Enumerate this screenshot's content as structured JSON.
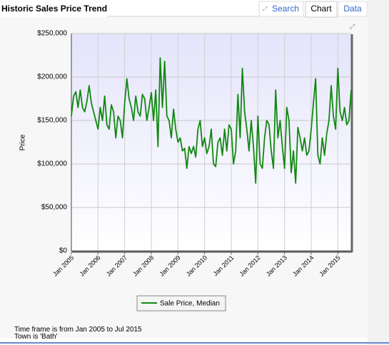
{
  "header": {
    "title": "Historic Sales Price Trend",
    "tabs": [
      "Search",
      "Chart",
      "Data"
    ]
  },
  "chart_data": {
    "type": "line",
    "ylabel": "Price",
    "categories": [
      "Jan 2005",
      null,
      null,
      null,
      null,
      null,
      null,
      null,
      null,
      null,
      null,
      null,
      "Jan 2006",
      null,
      null,
      null,
      null,
      null,
      null,
      null,
      null,
      null,
      null,
      null,
      "Jan 2007",
      null,
      null,
      null,
      null,
      null,
      null,
      null,
      null,
      null,
      null,
      null,
      "Jan 2008",
      null,
      null,
      null,
      null,
      null,
      null,
      null,
      null,
      null,
      null,
      null,
      "Jan 2009",
      null,
      null,
      null,
      null,
      null,
      null,
      null,
      null,
      null,
      null,
      null,
      "Jan 2010",
      null,
      null,
      null,
      null,
      null,
      null,
      null,
      null,
      null,
      null,
      null,
      "Jan 2011",
      null,
      null,
      null,
      null,
      null,
      null,
      null,
      null,
      null,
      null,
      null,
      "Jan 2012",
      null,
      null,
      null,
      null,
      null,
      null,
      null,
      null,
      null,
      null,
      null,
      "Jan 2013",
      null,
      null,
      null,
      null,
      null,
      null,
      null,
      null,
      null,
      null,
      null,
      "Jan 2014",
      null,
      null,
      null,
      null,
      null,
      null,
      null,
      null,
      null,
      null,
      null,
      "Jan 2015",
      null,
      null,
      null,
      null,
      null,
      null
    ],
    "series": [
      {
        "name": "Sale Price, Median",
        "color": "#118811",
        "values": [
          155000,
          178000,
          183000,
          165000,
          185000,
          165000,
          160000,
          172000,
          190000,
          170000,
          160000,
          150000,
          140000,
          165000,
          150000,
          178000,
          145000,
          140000,
          168000,
          160000,
          130000,
          155000,
          150000,
          130000,
          170000,
          198000,
          175000,
          165000,
          150000,
          178000,
          160000,
          155000,
          180000,
          175000,
          150000,
          165000,
          182000,
          150000,
          185000,
          120000,
          222000,
          165000,
          218000,
          155000,
          150000,
          130000,
          163000,
          140000,
          125000,
          130000,
          115000,
          118000,
          95000,
          120000,
          112000,
          120000,
          108000,
          140000,
          150000,
          120000,
          130000,
          112000,
          120000,
          140000,
          100000,
          97000,
          125000,
          130000,
          110000,
          140000,
          115000,
          145000,
          140000,
          100000,
          115000,
          180000,
          130000,
          210000,
          160000,
          140000,
          115000,
          150000,
          120000,
          78000,
          155000,
          100000,
          95000,
          130000,
          150000,
          145000,
          115000,
          95000,
          185000,
          130000,
          150000,
          120000,
          95000,
          165000,
          150000,
          90000,
          115000,
          78000,
          142000,
          130000,
          115000,
          130000,
          110000,
          115000,
          140000,
          170000,
          198000,
          110000,
          100000,
          130000,
          110000,
          135000,
          150000,
          190000,
          155000,
          140000,
          210000,
          160000,
          150000,
          165000,
          145000,
          150000,
          185000
        ]
      }
    ],
    "ylim": [
      0,
      250000
    ],
    "yticks": [
      {
        "value": 0,
        "label": "$0"
      },
      {
        "value": 50000,
        "label": "$50,000"
      },
      {
        "value": 100000,
        "label": "$100,000"
      },
      {
        "value": 150000,
        "label": "$150,000"
      },
      {
        "value": 200000,
        "label": "$200,000"
      },
      {
        "value": 250000,
        "label": "$250,000"
      }
    ],
    "grid": true
  },
  "footer": [
    "Time frame is from Jan 2005 to Jul 2015",
    "Town is 'Bath'"
  ]
}
